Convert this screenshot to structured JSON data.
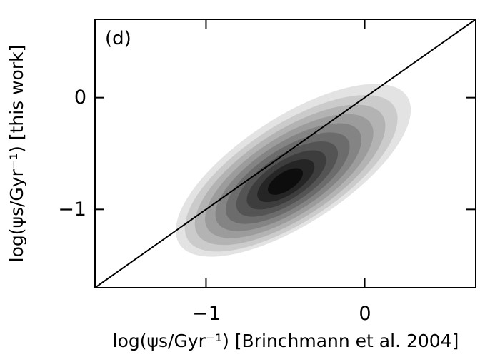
{
  "chart_data": {
    "type": "heatmap",
    "panel_label": "(d)",
    "xlabel": "log(ψs/Gyr⁻¹) [Brinchmann et al. 2004]",
    "ylabel": "log(ψs/Gyr⁻¹) [this work]",
    "xlim": [
      -1.7,
      0.7
    ],
    "ylim": [
      -1.7,
      0.7
    ],
    "xticks": [
      {
        "value": -1,
        "label": "−1"
      },
      {
        "value": 0,
        "label": "0"
      }
    ],
    "yticks": [
      {
        "value": -1,
        "label": "−1"
      },
      {
        "value": 0,
        "label": "0"
      }
    ],
    "reference_line": {
      "type": "one-to-one",
      "x": [
        -1.7,
        0.7
      ],
      "y": [
        -1.7,
        0.7
      ]
    },
    "density": {
      "peak": {
        "x": -0.5,
        "y": -0.75
      },
      "extent_x": [
        -1.2,
        0.3
      ],
      "extent_y": [
        -1.28,
        -0.02
      ],
      "levels": 10,
      "colors": {
        "outer": "#e3e3e3",
        "inner": "#0d0d0d"
      }
    },
    "grid": false
  }
}
